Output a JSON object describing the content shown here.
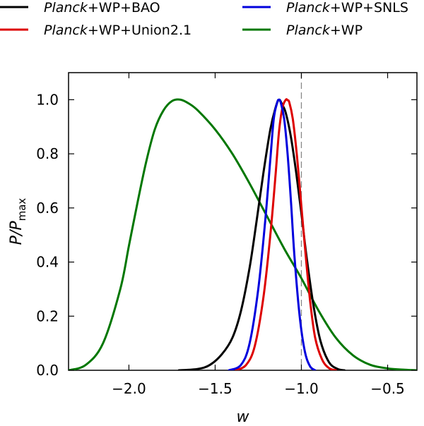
{
  "chart_data": {
    "type": "line",
    "title": "",
    "xlabel": "w",
    "ylabel": "P/P_max",
    "ylabel_parts": {
      "base": "P/P",
      "subscript": "max"
    },
    "xlim": [
      -2.35,
      -0.33
    ],
    "ylim": [
      0.0,
      1.1
    ],
    "grid": false,
    "legend_position": "top",
    "x_ticks": [
      {
        "value": -2.0,
        "label": "−2.0"
      },
      {
        "value": -1.5,
        "label": "−1.5"
      },
      {
        "value": -1.0,
        "label": "−1.0"
      },
      {
        "value": -0.5,
        "label": "−0.5"
      }
    ],
    "y_ticks": [
      {
        "value": 0.0,
        "label": "0.0"
      },
      {
        "value": 0.2,
        "label": "0.2"
      },
      {
        "value": 0.4,
        "label": "0.4"
      },
      {
        "value": 0.6,
        "label": "0.6"
      },
      {
        "value": 0.8,
        "label": "0.8"
      },
      {
        "value": 1.0,
        "label": "1.0"
      }
    ],
    "reference_line": {
      "x": -1.0,
      "style": "dashed",
      "color": "#888888"
    },
    "series": [
      {
        "name": "Planck+WP+BAO",
        "name_italic": "Planck",
        "name_rest": "+WP+BAO",
        "color": "#000000",
        "x": [
          -1.71,
          -1.6,
          -1.53,
          -1.46,
          -1.4,
          -1.35,
          -1.3,
          -1.26,
          -1.22,
          -1.18,
          -1.15,
          -1.13,
          -1.11,
          -1.09,
          -1.06,
          -1.03,
          -1.0,
          -0.97,
          -0.93,
          -0.89,
          -0.84,
          -0.79,
          -0.75
        ],
        "y": [
          0.0,
          0.005,
          0.02,
          0.06,
          0.12,
          0.22,
          0.38,
          0.55,
          0.73,
          0.89,
          0.97,
          1.0,
          0.98,
          0.95,
          0.86,
          0.73,
          0.58,
          0.42,
          0.24,
          0.11,
          0.03,
          0.005,
          0.0
        ]
      },
      {
        "name": "Planck+WP+SNLS",
        "name_italic": "Planck",
        "name_rest": "+WP+SNLS",
        "color": "#0000dd",
        "x": [
          -1.42,
          -1.35,
          -1.3,
          -1.25,
          -1.21,
          -1.18,
          -1.16,
          -1.14,
          -1.13,
          -1.12,
          -1.1,
          -1.08,
          -1.06,
          -1.04,
          -1.01,
          -0.98,
          -0.95,
          -0.92
        ],
        "y": [
          0.0,
          0.02,
          0.1,
          0.3,
          0.55,
          0.78,
          0.93,
          0.99,
          1.0,
          0.99,
          0.93,
          0.8,
          0.62,
          0.42,
          0.2,
          0.07,
          0.015,
          0.0
        ]
      },
      {
        "name": "Planck+WP+Union2.1",
        "name_italic": "Planck",
        "name_rest": "+WP+Union2.1",
        "color": "#dd0000",
        "x": [
          -1.38,
          -1.32,
          -1.27,
          -1.22,
          -1.18,
          -1.15,
          -1.13,
          -1.11,
          -1.09,
          -1.08,
          -1.07,
          -1.05,
          -1.03,
          -1.01,
          -0.98,
          -0.95,
          -0.92,
          -0.88,
          -0.84,
          -0.8
        ],
        "y": [
          0.0,
          0.02,
          0.09,
          0.27,
          0.5,
          0.72,
          0.88,
          0.97,
          1.0,
          0.998,
          0.99,
          0.93,
          0.82,
          0.68,
          0.46,
          0.26,
          0.12,
          0.04,
          0.008,
          0.0
        ]
      },
      {
        "name": "Planck+WP",
        "name_italic": "Planck",
        "name_rest": "+WP",
        "color": "#007700",
        "x": [
          -2.35,
          -2.25,
          -2.15,
          -2.05,
          -2.0,
          -1.95,
          -1.9,
          -1.85,
          -1.8,
          -1.75,
          -1.7,
          -1.65,
          -1.6,
          -1.5,
          -1.4,
          -1.3,
          -1.2,
          -1.1,
          -1.0,
          -0.9,
          -0.8,
          -0.7,
          -0.6,
          -0.5,
          -0.4,
          -0.33
        ],
        "y": [
          0.0,
          0.02,
          0.1,
          0.3,
          0.46,
          0.62,
          0.77,
          0.89,
          0.96,
          0.995,
          1.0,
          0.985,
          0.96,
          0.89,
          0.8,
          0.69,
          0.57,
          0.45,
          0.34,
          0.22,
          0.12,
          0.055,
          0.02,
          0.007,
          0.002,
          0.0
        ]
      }
    ],
    "legend": [
      {
        "series": 0,
        "column": 0,
        "row": 0
      },
      {
        "series": 2,
        "column": 0,
        "row": 1
      },
      {
        "series": 1,
        "column": 1,
        "row": 0
      },
      {
        "series": 3,
        "column": 1,
        "row": 1
      }
    ]
  }
}
